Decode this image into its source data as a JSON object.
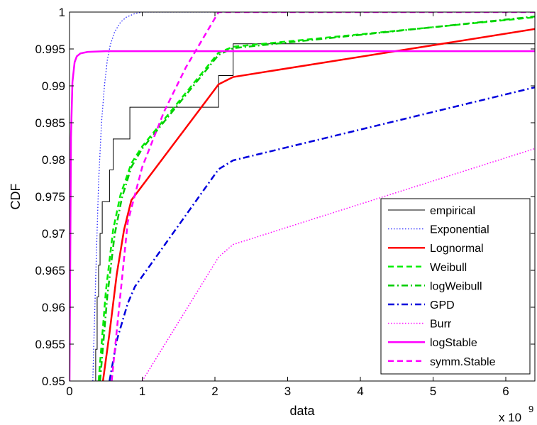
{
  "chart_data": {
    "type": "line",
    "xlabel": "data",
    "ylabel": "CDF",
    "x_multiplier_label": "x 10",
    "x_multiplier_exponent": "9",
    "xlim": [
      0,
      6.4
    ],
    "ylim": [
      0.95,
      1.0
    ],
    "x_ticks": [
      0,
      1,
      2,
      3,
      4,
      5,
      6
    ],
    "x_tick_labels": [
      "0",
      "1",
      "2",
      "3",
      "4",
      "5",
      "6"
    ],
    "y_ticks": [
      0.95,
      0.955,
      0.96,
      0.965,
      0.97,
      0.975,
      0.98,
      0.985,
      0.99,
      0.995,
      1.0
    ],
    "y_tick_labels": [
      "0.95",
      "0.955",
      "0.96",
      "0.965",
      "0.97",
      "0.975",
      "0.98",
      "0.985",
      "0.99",
      "0.995",
      "1"
    ],
    "grid": false,
    "legend_position": "bottom-right",
    "series": [
      {
        "name": "empirical",
        "color": "#000000",
        "style": "step",
        "width": 1,
        "dash": "",
        "x": [
          0.3,
          0.36,
          0.36,
          0.38,
          0.38,
          0.4,
          0.4,
          0.42,
          0.42,
          0.45,
          0.45,
          0.55,
          0.55,
          0.6,
          0.6,
          0.65,
          0.65,
          0.68,
          0.68,
          0.83,
          0.83,
          1.0,
          1.0,
          2.05,
          2.05,
          2.25,
          2.25,
          6.4
        ],
        "y": [
          0.95,
          0.95,
          0.9543,
          0.9543,
          0.9614,
          0.9614,
          0.9657,
          0.9657,
          0.97,
          0.97,
          0.9743,
          0.9743,
          0.9786,
          0.9786,
          0.9828,
          0.9828,
          0.9828,
          0.9828,
          0.9828,
          0.9828,
          0.9871,
          0.9871,
          0.9871,
          0.9871,
          0.9914,
          0.9914,
          0.9957,
          0.9957
        ]
      },
      {
        "name": "Exponential",
        "color": "#2020ff",
        "style": "line",
        "width": 1.3,
        "dash": "1.5 2.5",
        "x": [
          0.32,
          0.36,
          0.4,
          0.44,
          0.48,
          0.52,
          0.56,
          0.62,
          0.7,
          0.78,
          0.9,
          1.0,
          6.4
        ],
        "y": [
          0.95,
          0.964,
          0.977,
          0.985,
          0.99,
          0.9935,
          0.9955,
          0.9973,
          0.9986,
          0.9993,
          0.9998,
          1.0,
          1.0
        ]
      },
      {
        "name": "Lognormal",
        "color": "#ff0000",
        "style": "line",
        "width": 2.5,
        "dash": "",
        "x": [
          0.46,
          0.55,
          0.65,
          0.75,
          0.85,
          2.05,
          2.25,
          6.4
        ],
        "y": [
          0.95,
          0.9565,
          0.9645,
          0.9705,
          0.9745,
          0.9902,
          0.9912,
          0.9977
        ]
      },
      {
        "name": "Weibull",
        "color": "#00ee00",
        "style": "line",
        "width": 2.5,
        "dash": "8 5",
        "x": [
          0.4,
          0.5,
          0.6,
          0.7,
          0.85,
          1.0,
          2.05,
          2.25,
          6.4
        ],
        "y": [
          0.95,
          0.9622,
          0.9705,
          0.9752,
          0.9795,
          0.9818,
          0.9945,
          0.9953,
          0.9993
        ]
      },
      {
        "name": "logWeibull",
        "color": "#00cc00",
        "style": "line",
        "width": 2.5,
        "dash": "9 4 2 4",
        "x": [
          0.42,
          0.52,
          0.62,
          0.72,
          0.85,
          1.0,
          2.05,
          2.25,
          6.4
        ],
        "y": [
          0.95,
          0.9615,
          0.9698,
          0.9748,
          0.979,
          0.9815,
          0.9942,
          0.9951,
          0.9994
        ]
      },
      {
        "name": "GPD",
        "color": "#0000dd",
        "style": "line",
        "width": 2.5,
        "dash": "9 4 2 4",
        "x": [
          0.55,
          0.65,
          0.8,
          0.9,
          2.05,
          2.25,
          6.4
        ],
        "y": [
          0.95,
          0.9555,
          0.9605,
          0.9628,
          0.9787,
          0.9799,
          0.9898
        ]
      },
      {
        "name": "Burr",
        "color": "#ff00ff",
        "style": "line",
        "width": 1.5,
        "dash": "1.5 2.5",
        "x": [
          1.0,
          2.05,
          2.25,
          6.4
        ],
        "y": [
          0.95,
          0.9668,
          0.9685,
          0.9815
        ]
      },
      {
        "name": "logStable",
        "color": "#ff00ff",
        "style": "line",
        "width": 2.5,
        "dash": "",
        "x": [
          0.0,
          0.02,
          0.04,
          0.07,
          0.1,
          0.15,
          0.25,
          0.5,
          6.4
        ],
        "y": [
          0.95,
          0.983,
          0.9905,
          0.9932,
          0.994,
          0.9944,
          0.9946,
          0.9947,
          0.9947
        ]
      },
      {
        "name": "symm.Stable",
        "color": "#ff00ff",
        "style": "line",
        "width": 2.5,
        "dash": "8 5",
        "x": [
          0.58,
          0.8,
          1.0,
          1.3,
          1.6,
          1.9,
          2.05,
          6.4
        ],
        "y": [
          0.95,
          0.9715,
          0.979,
          0.9865,
          0.9925,
          0.9975,
          1.0,
          1.0
        ]
      }
    ]
  }
}
